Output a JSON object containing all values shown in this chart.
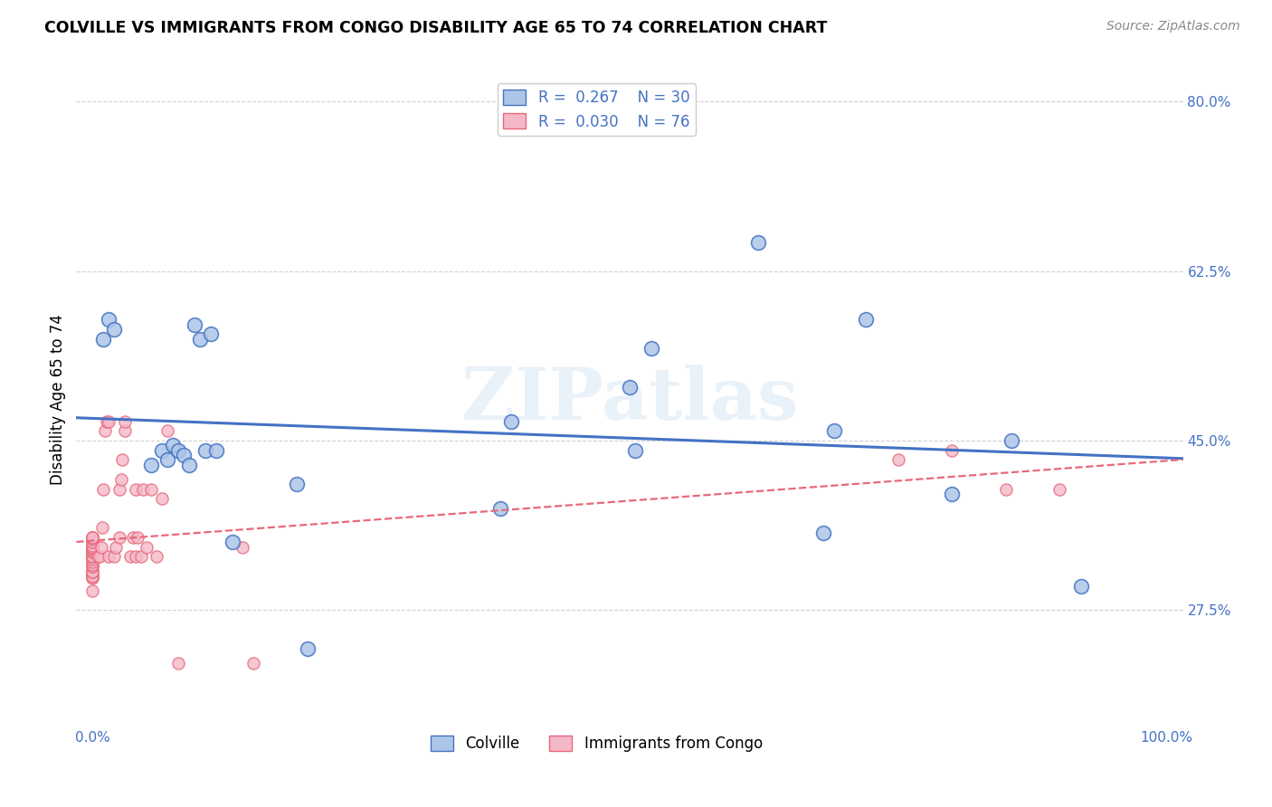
{
  "title": "COLVILLE VS IMMIGRANTS FROM CONGO DISABILITY AGE 65 TO 74 CORRELATION CHART",
  "source": "Source: ZipAtlas.com",
  "ylabel": "Disability Age 65 to 74",
  "y_min": 0.155,
  "y_max": 0.83,
  "x_min": -0.015,
  "x_max": 1.015,
  "watermark": "ZIPatlas",
  "colville_R": 0.267,
  "colville_N": 30,
  "congo_R": 0.03,
  "congo_N": 76,
  "colville_color": "#adc6e8",
  "colville_edge_color": "#4472c4",
  "congo_color": "#f4b8c8",
  "congo_edge_color": "#e8687a",
  "colville_line_color": "#4472c4",
  "congo_line_color": "#e8687a",
  "colville_x": [
    0.01,
    0.015,
    0.02,
    0.055,
    0.065,
    0.07,
    0.075,
    0.08,
    0.085,
    0.09,
    0.095,
    0.1,
    0.105,
    0.11,
    0.115,
    0.13,
    0.19,
    0.2,
    0.38,
    0.39,
    0.5,
    0.505,
    0.52,
    0.62,
    0.68,
    0.69,
    0.72,
    0.8,
    0.855,
    0.92
  ],
  "colville_y": [
    0.555,
    0.575,
    0.565,
    0.425,
    0.44,
    0.43,
    0.445,
    0.44,
    0.435,
    0.425,
    0.57,
    0.555,
    0.44,
    0.56,
    0.44,
    0.345,
    0.405,
    0.235,
    0.38,
    0.47,
    0.505,
    0.44,
    0.545,
    0.655,
    0.355,
    0.46,
    0.575,
    0.395,
    0.45,
    0.3
  ],
  "congo_x": [
    0.0,
    0.0,
    0.0,
    0.0,
    0.0,
    0.0,
    0.0,
    0.0,
    0.0,
    0.0,
    0.0,
    0.0,
    0.0,
    0.0,
    0.0,
    0.0,
    0.0,
    0.0,
    0.0,
    0.0,
    0.0,
    0.0,
    0.0,
    0.0,
    0.0,
    0.0,
    0.0,
    0.0,
    0.0,
    0.0,
    0.0,
    0.0,
    0.0,
    0.0,
    0.0,
    0.0,
    0.0,
    0.0,
    0.0,
    0.0,
    0.005,
    0.007,
    0.008,
    0.009,
    0.01,
    0.012,
    0.013,
    0.015,
    0.015,
    0.02,
    0.022,
    0.025,
    0.025,
    0.027,
    0.028,
    0.03,
    0.03,
    0.035,
    0.038,
    0.04,
    0.04,
    0.042,
    0.045,
    0.047,
    0.05,
    0.055,
    0.06,
    0.065,
    0.07,
    0.08,
    0.14,
    0.15,
    0.75,
    0.8,
    0.85,
    0.9
  ],
  "congo_y": [
    0.295,
    0.308,
    0.31,
    0.31,
    0.31,
    0.31,
    0.315,
    0.315,
    0.315,
    0.315,
    0.32,
    0.32,
    0.322,
    0.325,
    0.328,
    0.33,
    0.33,
    0.33,
    0.33,
    0.33,
    0.33,
    0.33,
    0.33,
    0.33,
    0.335,
    0.335,
    0.337,
    0.338,
    0.34,
    0.34,
    0.34,
    0.342,
    0.345,
    0.345,
    0.348,
    0.35,
    0.35,
    0.35,
    0.35,
    0.35,
    0.33,
    0.33,
    0.34,
    0.36,
    0.4,
    0.46,
    0.47,
    0.33,
    0.47,
    0.33,
    0.34,
    0.35,
    0.4,
    0.41,
    0.43,
    0.46,
    0.47,
    0.33,
    0.35,
    0.33,
    0.4,
    0.35,
    0.33,
    0.4,
    0.34,
    0.4,
    0.33,
    0.39,
    0.46,
    0.22,
    0.34,
    0.22,
    0.43,
    0.44,
    0.4,
    0.4
  ],
  "y_ticks": [
    0.275,
    0.45,
    0.625,
    0.8
  ],
  "y_tick_labels": [
    "27.5%",
    "45.0%",
    "62.5%",
    "80.0%"
  ],
  "x_ticks": [
    0.0,
    1.0
  ],
  "x_tick_labels": [
    "0.0%",
    "100.0%"
  ]
}
